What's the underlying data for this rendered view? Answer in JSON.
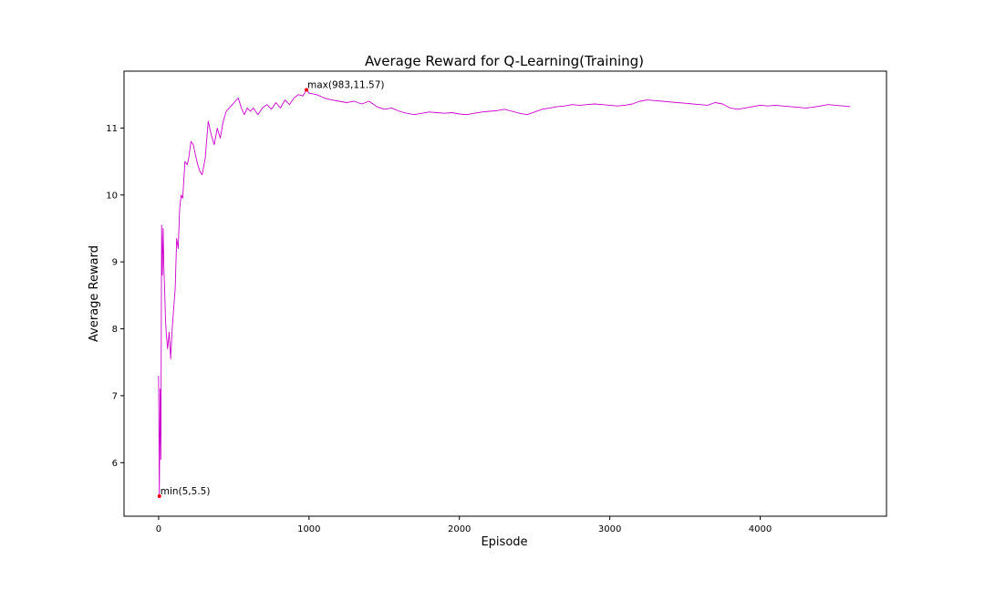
{
  "chart_data": {
    "type": "line",
    "title": "Average Reward for Q-Learning(Training)",
    "xlabel": "Episode",
    "ylabel": "Average Reward",
    "xlim": [
      -230,
      4840
    ],
    "ylim": [
      5.2,
      11.85
    ],
    "xticks": [
      0,
      1000,
      2000,
      3000,
      4000
    ],
    "yticks": [
      6,
      7,
      8,
      9,
      10,
      11
    ],
    "grid": false,
    "line_color": "#cc00cc",
    "marker_color": "#ff0000",
    "series": [
      {
        "x": [
          0,
          5,
          10,
          15,
          20,
          25,
          30,
          35,
          40,
          45,
          50,
          60,
          70,
          80,
          90,
          100,
          110,
          120,
          130,
          140,
          150,
          160,
          175,
          190,
          200,
          215,
          230,
          245,
          260,
          275,
          290,
          310,
          330,
          350,
          370,
          390,
          410,
          430,
          450,
          470,
          490,
          510,
          530,
          550,
          570,
          590,
          610,
          630,
          660,
          690,
          720,
          750,
          780,
          810,
          840,
          870,
          900,
          930,
          960,
          983,
          1000,
          1050,
          1100,
          1150,
          1200,
          1250,
          1300,
          1350,
          1400,
          1450,
          1500,
          1550,
          1600,
          1650,
          1700,
          1750,
          1800,
          1850,
          1900,
          1950,
          2000,
          2050,
          2100,
          2150,
          2200,
          2250,
          2300,
          2350,
          2400,
          2450,
          2500,
          2550,
          2600,
          2650,
          2700,
          2750,
          2800,
          2850,
          2900,
          2950,
          3000,
          3050,
          3100,
          3150,
          3200,
          3250,
          3300,
          3350,
          3400,
          3450,
          3500,
          3550,
          3600,
          3650,
          3700,
          3750,
          3800,
          3850,
          3900,
          3950,
          4000,
          4050,
          4100,
          4150,
          4200,
          4250,
          4300,
          4350,
          4400,
          4450,
          4500,
          4550,
          4600
        ],
        "y": [
          7.3,
          5.5,
          7.1,
          6.05,
          9.55,
          8.8,
          9.5,
          8.9,
          8.6,
          8.2,
          7.95,
          7.7,
          7.95,
          7.55,
          8.0,
          8.3,
          8.6,
          9.35,
          9.2,
          9.8,
          10.0,
          9.95,
          10.5,
          10.45,
          10.55,
          10.8,
          10.75,
          10.6,
          10.45,
          10.35,
          10.3,
          10.55,
          11.1,
          10.9,
          10.75,
          11.0,
          10.85,
          11.1,
          11.25,
          11.3,
          11.35,
          11.4,
          11.45,
          11.3,
          11.2,
          11.3,
          11.25,
          11.3,
          11.2,
          11.3,
          11.35,
          11.28,
          11.38,
          11.3,
          11.42,
          11.35,
          11.45,
          11.5,
          11.48,
          11.57,
          11.52,
          11.5,
          11.45,
          11.42,
          11.4,
          11.38,
          11.4,
          11.36,
          11.4,
          11.32,
          11.28,
          11.3,
          11.25,
          11.22,
          11.2,
          11.22,
          11.24,
          11.23,
          11.22,
          11.23,
          11.21,
          11.2,
          11.22,
          11.24,
          11.25,
          11.26,
          11.28,
          11.25,
          11.22,
          11.2,
          11.24,
          11.28,
          11.3,
          11.32,
          11.33,
          11.35,
          11.34,
          11.35,
          11.36,
          11.35,
          11.34,
          11.33,
          11.34,
          11.36,
          11.4,
          11.42,
          11.41,
          11.4,
          11.39,
          11.38,
          11.37,
          11.36,
          11.35,
          11.34,
          11.38,
          11.36,
          11.3,
          11.28,
          11.3,
          11.32,
          11.34,
          11.33,
          11.34,
          11.33,
          11.32,
          11.31,
          11.3,
          11.31,
          11.33,
          11.35,
          11.34,
          11.33,
          11.32
        ]
      }
    ],
    "annotations": [
      {
        "label": "min(5,5.5)",
        "x": 5,
        "y": 5.5
      },
      {
        "label": "max(983,11.57)",
        "x": 983,
        "y": 11.57
      }
    ]
  }
}
